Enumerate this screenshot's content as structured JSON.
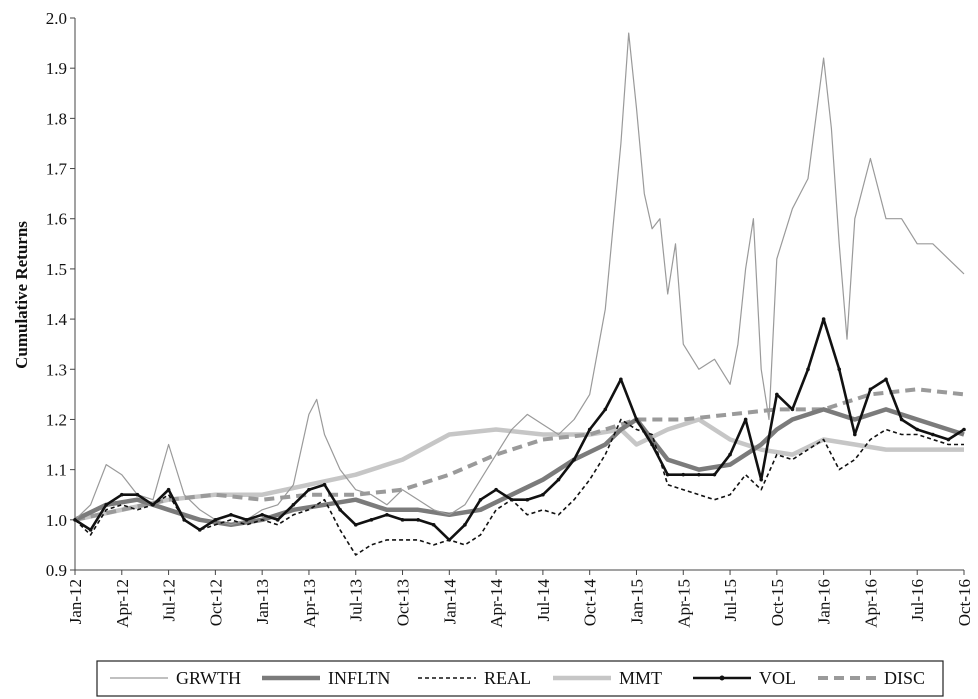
{
  "chart_data": {
    "type": "line",
    "title": "",
    "xlabel": "",
    "ylabel": "Cumulative Returns",
    "ylim": [
      0.9,
      2.0
    ],
    "yticks": [
      "0.9",
      "1.0",
      "1.1",
      "1.2",
      "1.3",
      "1.4",
      "1.5",
      "1.6",
      "1.7",
      "1.8",
      "1.9",
      "2.0"
    ],
    "xticks": [
      "Jan-12",
      "Apr-12",
      "Jul-12",
      "Oct-12",
      "Jan-13",
      "Apr-13",
      "Jul-13",
      "Oct-13",
      "Jan-14",
      "Apr-14",
      "Jul-14",
      "Oct-14",
      "Jan-15",
      "Apr-15",
      "Jul-15",
      "Oct-15",
      "Jan-16",
      "Apr-16",
      "Jul-16",
      "Oct-16"
    ],
    "grid": false,
    "legend_position": "bottom",
    "x_unit": "months since Jan-12",
    "series": [
      {
        "name": "GRWTH",
        "color": "#9a9a9a",
        "style": "thin",
        "x": [
          0,
          1,
          2,
          3,
          4,
          5,
          6,
          7,
          8,
          9,
          10,
          11,
          12,
          13,
          14,
          15,
          15.5,
          16,
          17,
          18,
          19,
          20,
          21,
          22,
          23,
          24,
          25,
          26,
          27,
          28,
          29,
          30,
          31,
          32,
          33,
          34,
          35,
          35.5,
          36,
          36.5,
          37,
          37.5,
          38,
          38.5,
          39,
          40,
          41,
          42,
          42.5,
          43,
          43.5,
          44,
          44.5,
          45,
          46,
          46.5,
          47,
          47.5,
          48,
          48.5,
          49,
          49.5,
          50,
          51,
          52,
          53,
          54,
          55,
          56,
          57
        ],
        "y": [
          1.0,
          1.03,
          1.11,
          1.09,
          1.05,
          1.04,
          1.15,
          1.05,
          1.02,
          1.0,
          0.99,
          1.0,
          1.02,
          1.03,
          1.07,
          1.21,
          1.24,
          1.17,
          1.1,
          1.06,
          1.05,
          1.03,
          1.06,
          1.04,
          1.02,
          1.01,
          1.03,
          1.08,
          1.13,
          1.18,
          1.21,
          1.19,
          1.17,
          1.2,
          1.25,
          1.42,
          1.75,
          1.97,
          1.82,
          1.65,
          1.58,
          1.6,
          1.45,
          1.55,
          1.35,
          1.3,
          1.32,
          1.27,
          1.35,
          1.5,
          1.6,
          1.3,
          1.2,
          1.52,
          1.62,
          1.65,
          1.68,
          1.8,
          1.92,
          1.78,
          1.55,
          1.36,
          1.6,
          1.72,
          1.6,
          1.6,
          1.55,
          1.55,
          1.52,
          1.49
        ]
      },
      {
        "name": "INFLTN",
        "color": "#7b7b7b",
        "style": "thick",
        "x": [
          0,
          2,
          4,
          6,
          8,
          10,
          12,
          14,
          16,
          18,
          20,
          22,
          24,
          26,
          28,
          30,
          32,
          34,
          35,
          36,
          38,
          40,
          42,
          44,
          45,
          46,
          48,
          50,
          52,
          54,
          56,
          57
        ],
        "y": [
          1.0,
          1.03,
          1.04,
          1.02,
          1.0,
          0.99,
          1.0,
          1.02,
          1.03,
          1.04,
          1.02,
          1.02,
          1.01,
          1.02,
          1.05,
          1.08,
          1.12,
          1.15,
          1.18,
          1.2,
          1.12,
          1.1,
          1.11,
          1.15,
          1.18,
          1.2,
          1.22,
          1.2,
          1.22,
          1.2,
          1.18,
          1.17
        ]
      },
      {
        "name": "REAL",
        "color": "#111111",
        "style": "dashed",
        "x": [
          0,
          1,
          2,
          3,
          4,
          5,
          6,
          7,
          8,
          9,
          10,
          11,
          12,
          13,
          14,
          15,
          16,
          17,
          18,
          19,
          20,
          21,
          22,
          23,
          24,
          25,
          26,
          27,
          28,
          29,
          30,
          31,
          32,
          33,
          34,
          35,
          36,
          37,
          38,
          39,
          40,
          41,
          42,
          43,
          44,
          45,
          46,
          47,
          48,
          49,
          50,
          51,
          52,
          53,
          54,
          55,
          56,
          57
        ],
        "y": [
          1.0,
          0.97,
          1.02,
          1.03,
          1.02,
          1.03,
          1.05,
          1.0,
          0.98,
          0.99,
          1.0,
          0.99,
          1.0,
          0.99,
          1.01,
          1.02,
          1.04,
          0.98,
          0.93,
          0.95,
          0.96,
          0.96,
          0.96,
          0.95,
          0.96,
          0.95,
          0.97,
          1.02,
          1.04,
          1.01,
          1.02,
          1.01,
          1.04,
          1.08,
          1.13,
          1.2,
          1.18,
          1.17,
          1.07,
          1.06,
          1.05,
          1.04,
          1.05,
          1.09,
          1.06,
          1.13,
          1.12,
          1.14,
          1.16,
          1.1,
          1.12,
          1.16,
          1.18,
          1.17,
          1.17,
          1.16,
          1.15,
          1.15
        ]
      },
      {
        "name": "MMT",
        "color": "#c6c6c6",
        "style": "thick",
        "x": [
          0,
          3,
          6,
          9,
          12,
          15,
          18,
          21,
          24,
          27,
          30,
          33,
          35,
          36,
          38,
          40,
          42,
          44,
          46,
          48,
          50,
          52,
          54,
          57
        ],
        "y": [
          1.0,
          1.02,
          1.04,
          1.05,
          1.05,
          1.07,
          1.09,
          1.12,
          1.17,
          1.18,
          1.17,
          1.17,
          1.18,
          1.15,
          1.18,
          1.2,
          1.16,
          1.14,
          1.13,
          1.16,
          1.15,
          1.14,
          1.14,
          1.14
        ]
      },
      {
        "name": "VOL",
        "color": "#111111",
        "style": "marker",
        "x": [
          0,
          1,
          2,
          3,
          4,
          5,
          6,
          7,
          8,
          9,
          10,
          11,
          12,
          13,
          14,
          15,
          16,
          17,
          18,
          19,
          20,
          21,
          22,
          23,
          24,
          25,
          26,
          27,
          28,
          29,
          30,
          31,
          32,
          33,
          34,
          35,
          36,
          37,
          38,
          39,
          40,
          41,
          42,
          43,
          44,
          45,
          46,
          47,
          48,
          49,
          50,
          51,
          52,
          53,
          54,
          55,
          56,
          57
        ],
        "y": [
          1.0,
          0.98,
          1.03,
          1.05,
          1.05,
          1.03,
          1.06,
          1.0,
          0.98,
          1.0,
          1.01,
          1.0,
          1.01,
          1.0,
          1.03,
          1.06,
          1.07,
          1.02,
          0.99,
          1.0,
          1.01,
          1.0,
          1.0,
          0.99,
          0.96,
          0.99,
          1.04,
          1.06,
          1.04,
          1.04,
          1.05,
          1.08,
          1.12,
          1.18,
          1.22,
          1.28,
          1.2,
          1.15,
          1.09,
          1.09,
          1.09,
          1.09,
          1.13,
          1.2,
          1.08,
          1.25,
          1.22,
          1.3,
          1.4,
          1.3,
          1.17,
          1.26,
          1.28,
          1.2,
          1.18,
          1.17,
          1.16,
          1.18
        ]
      },
      {
        "name": "DISC",
        "color": "#9a9a9a",
        "style": "long-dash",
        "x": [
          0,
          3,
          6,
          9,
          12,
          15,
          18,
          21,
          24,
          27,
          30,
          33,
          36,
          39,
          42,
          45,
          48,
          51,
          54,
          57
        ],
        "y": [
          1.0,
          1.02,
          1.04,
          1.05,
          1.04,
          1.05,
          1.05,
          1.06,
          1.09,
          1.13,
          1.16,
          1.17,
          1.2,
          1.2,
          1.21,
          1.22,
          1.22,
          1.25,
          1.26,
          1.25
        ]
      }
    ]
  }
}
